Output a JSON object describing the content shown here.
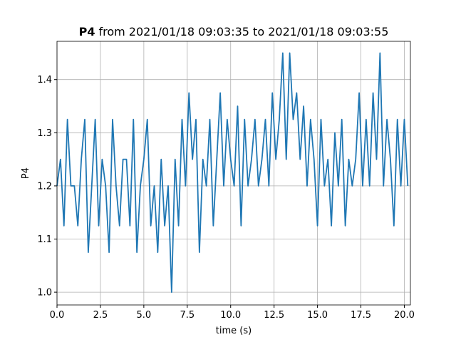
{
  "chart_data": {
    "type": "line",
    "title_bold": "P4",
    "title": "from 2021/01/18 09:03:35 to 2021/01/18 09:03:55",
    "xlabel": "time (s)",
    "ylabel": "P4",
    "x": [
      0,
      0.2,
      0.4,
      0.6,
      0.8,
      1,
      1.2,
      1.4,
      1.6,
      1.8,
      2,
      2.2,
      2.4,
      2.6,
      2.8,
      3,
      3.2,
      3.4,
      3.6,
      3.8,
      4,
      4.2,
      4.4,
      4.6,
      4.8,
      5,
      5.2,
      5.4,
      5.6,
      5.8,
      6,
      6.2,
      6.4,
      6.6,
      6.8,
      7,
      7.2,
      7.4,
      7.6,
      7.8,
      8,
      8.2,
      8.4,
      8.6,
      8.8,
      9,
      9.2,
      9.4,
      9.6,
      9.8,
      10,
      10.2,
      10.4,
      10.6,
      10.8,
      11,
      11.2,
      11.4,
      11.6,
      11.8,
      12,
      12.2,
      12.4,
      12.6,
      12.8,
      13,
      13.2,
      13.4,
      13.6,
      13.8,
      14,
      14.2,
      14.4,
      14.6,
      14.8,
      15,
      15.2,
      15.4,
      15.6,
      15.8,
      16,
      16.2,
      16.4,
      16.6,
      16.8,
      17,
      17.2,
      17.4,
      17.6,
      17.8,
      18,
      18.2,
      18.4,
      18.6,
      18.8,
      19,
      19.2,
      19.4,
      19.6,
      19.8,
      20,
      20.2
    ],
    "series": [
      {
        "name": "P4",
        "color": "#1f77b4",
        "values": [
          1.2,
          1.25,
          1.125,
          1.325,
          1.2,
          1.2,
          1.125,
          1.25,
          1.325,
          1.075,
          1.2,
          1.325,
          1.125,
          1.25,
          1.2,
          1.075,
          1.325,
          1.2,
          1.125,
          1.25,
          1.25,
          1.125,
          1.325,
          1.075,
          1.2,
          1.25,
          1.325,
          1.125,
          1.2,
          1.075,
          1.25,
          1.125,
          1.2,
          1.0,
          1.25,
          1.125,
          1.325,
          1.2,
          1.375,
          1.25,
          1.325,
          1.075,
          1.25,
          1.2,
          1.325,
          1.125,
          1.25,
          1.375,
          1.2,
          1.325,
          1.25,
          1.2,
          1.35,
          1.125,
          1.325,
          1.2,
          1.25,
          1.325,
          1.2,
          1.25,
          1.325,
          1.2,
          1.375,
          1.25,
          1.325,
          1.45,
          1.25,
          1.45,
          1.325,
          1.375,
          1.25,
          1.35,
          1.2,
          1.325,
          1.25,
          1.125,
          1.325,
          1.2,
          1.25,
          1.125,
          1.3,
          1.2,
          1.325,
          1.125,
          1.25,
          1.2,
          1.25,
          1.375,
          1.2,
          1.325,
          1.2,
          1.375,
          1.25,
          1.45,
          1.2,
          1.325,
          1.25,
          1.125,
          1.325,
          1.2,
          1.325,
          1.2
        ]
      }
    ],
    "xlim": [
      0,
      20.35
    ],
    "ylim": [
      0.976,
      1.472
    ],
    "xticks": [
      {
        "value": 0,
        "label": "0.0"
      },
      2.5,
      {
        "value": 5,
        "label": "5.0"
      },
      7.5,
      {
        "value": 10,
        "label": "10.0"
      },
      12.5,
      {
        "value": 15,
        "label": "15.0"
      },
      17.5,
      {
        "value": 20,
        "label": "20.0"
      }
    ],
    "yticks": [
      {
        "value": 1,
        "label": "1.0"
      },
      1.1,
      1.2,
      1.3,
      1.4
    ],
    "grid": true
  }
}
